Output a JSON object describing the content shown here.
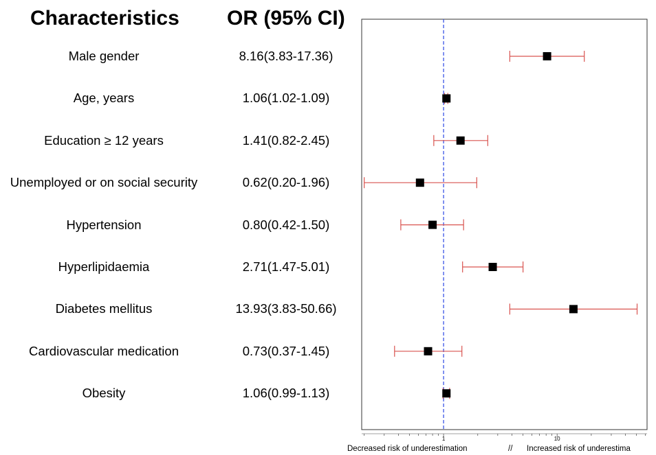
{
  "headers": {
    "characteristics": "Characteristics",
    "or": "OR (95% CI)"
  },
  "rows": [
    {
      "label": "Male gender",
      "or_text": "8.16(3.83-17.36)"
    },
    {
      "label": "Age, years",
      "or_text": "1.06(1.02-1.09)"
    },
    {
      "label": "Education ≥ 12 years",
      "or_text": "1.41(0.82-2.45)"
    },
    {
      "label": "Unemployed or on social security",
      "or_text": "0.62(0.20-1.96)"
    },
    {
      "label": "Hypertension",
      "or_text": "0.80(0.42-1.50)"
    },
    {
      "label": "Hyperlipidaemia",
      "or_text": "2.71(1.47-5.01)"
    },
    {
      "label": "Diabetes mellitus",
      "or_text": "13.93(3.83-50.66)"
    },
    {
      "label": "Cardiovascular medication",
      "or_text": "0.73(0.37-1.45)"
    },
    {
      "label": "Obesity",
      "or_text": "1.06(0.99-1.13)"
    }
  ],
  "footer": {
    "left": "Decreased risk of underestimation",
    "separator": "//",
    "right": "Increased risk of underestima"
  },
  "chart_data": {
    "type": "forest",
    "x_scale": "log",
    "xlim": [
      0.19,
      62
    ],
    "x_ticks": [
      1,
      10
    ],
    "x_tick_labels": [
      "1",
      "10"
    ],
    "reference_line": 1,
    "reference_line_color": "#3b55e6",
    "marker_color": "#000000",
    "ci_color": "#d9534f",
    "categories": [
      "Male gender",
      "Age, years",
      "Education ≥ 12 years",
      "Unemployed or on social security",
      "Hypertension",
      "Hyperlipidaemia",
      "Diabetes mellitus",
      "Cardiovascular medication",
      "Obesity"
    ],
    "or": [
      8.16,
      1.06,
      1.41,
      0.62,
      0.8,
      2.71,
      13.93,
      0.73,
      1.06
    ],
    "ci_low": [
      3.83,
      1.02,
      0.82,
      0.2,
      0.42,
      1.47,
      3.83,
      0.37,
      0.99
    ],
    "ci_high": [
      17.36,
      1.09,
      2.45,
      1.96,
      1.5,
      5.01,
      50.66,
      1.45,
      1.13
    ]
  }
}
